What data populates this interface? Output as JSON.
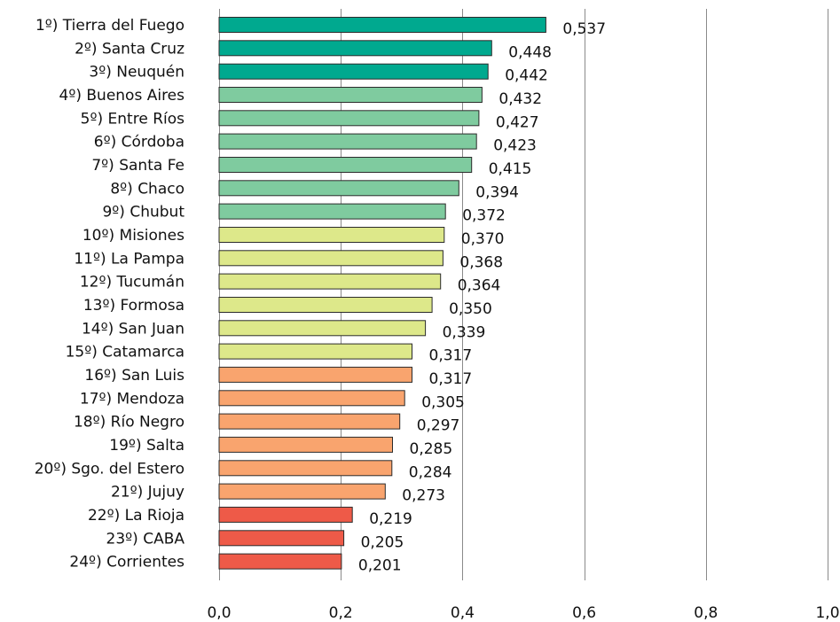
{
  "chart_data": {
    "type": "bar",
    "orientation": "horizontal",
    "title": "",
    "xlabel": "",
    "ylabel": "",
    "xlim": [
      0,
      1.0
    ],
    "xticks": [
      0.0,
      0.2,
      0.4,
      0.6,
      0.8,
      1.0
    ],
    "xtick_labels": [
      "0,0",
      "0,2",
      "0,4",
      "0,6",
      "0,8",
      "1,0"
    ],
    "grid": "vertical",
    "legend": "none",
    "categories": [
      "1º) Tierra del Fuego",
      "2º) Santa Cruz",
      "3º) Neuquén",
      "4º) Buenos Aires",
      "5º) Entre Ríos",
      "6º) Córdoba",
      "7º) Santa Fe",
      "8º) Chaco",
      "9º) Chubut",
      "10º) Misiones",
      "11º) La Pampa",
      "12º) Tucumán",
      "13º) Formosa",
      "14º) San Juan",
      "15º) Catamarca",
      "16º) San Luis",
      "17º) Mendoza",
      "18º) Río Negro",
      "19º) Salta",
      "20º) Sgo. del Estero",
      "21º) Jujuy",
      "22º) La Rioja",
      "23º) CABA",
      "24º) Corrientes"
    ],
    "values": [
      0.537,
      0.448,
      0.442,
      0.432,
      0.427,
      0.423,
      0.415,
      0.394,
      0.372,
      0.37,
      0.368,
      0.364,
      0.35,
      0.339,
      0.317,
      0.317,
      0.305,
      0.297,
      0.285,
      0.284,
      0.273,
      0.219,
      0.205,
      0.201
    ],
    "value_labels": [
      "0,537",
      "0,448",
      "0,442",
      "0,432",
      "0,427",
      "0,423",
      "0,415",
      "0,394",
      "0,372",
      "0,370",
      "0,368",
      "0,364",
      "0,350",
      "0,339",
      "0,317",
      "0,317",
      "0,305",
      "0,297",
      "0,285",
      "0,284",
      "0,273",
      "0,219",
      "0,205",
      "0,201"
    ],
    "colors": [
      "#00a98f",
      "#00a98f",
      "#00a98f",
      "#7fcb9f",
      "#7fcb9f",
      "#7fcb9f",
      "#7fcb9f",
      "#7fcb9f",
      "#7fcb9f",
      "#dde88a",
      "#dde88a",
      "#dde88a",
      "#dde88a",
      "#dde88a",
      "#dde88a",
      "#f9a46e",
      "#f9a46e",
      "#f9a46e",
      "#f9a46e",
      "#f9a46e",
      "#f9a46e",
      "#ee5a48",
      "#ee5a48",
      "#ee5a48"
    ]
  }
}
